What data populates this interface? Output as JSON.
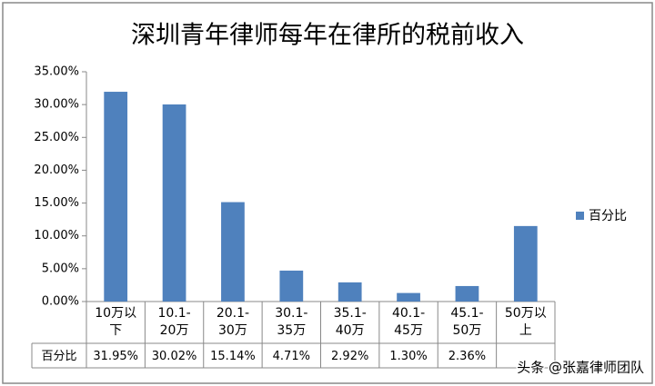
{
  "chart_data": {
    "type": "bar",
    "title": "深圳青年律师每年在律所的税前收入",
    "categories": [
      "10万以下",
      "10.1-20万",
      "20.1-30万",
      "30.1-35万",
      "35.1-40万",
      "40.1-45万",
      "45.1-50万",
      "50万以上"
    ],
    "series": [
      {
        "name": "百分比",
        "color": "#4f81bd",
        "values": [
          31.95,
          30.02,
          15.14,
          4.71,
          2.92,
          1.3,
          2.36,
          11.5
        ],
        "value_labels": [
          "31.95%",
          "30.02%",
          "15.14%",
          "4.71%",
          "2.92%",
          "1.30%",
          "2.36%",
          null
        ]
      }
    ],
    "ylim": [
      0,
      35
    ],
    "yticks": [
      {
        "value": 0,
        "label": "0.00%"
      },
      {
        "value": 5,
        "label": "5.00%"
      },
      {
        "value": 10,
        "label": "10.00%"
      },
      {
        "value": 15,
        "label": "15.00%"
      },
      {
        "value": 20,
        "label": "20.00%"
      },
      {
        "value": 25,
        "label": "25.00%"
      },
      {
        "value": 30,
        "label": "30.00%"
      },
      {
        "value": 35,
        "label": "35.00%"
      }
    ],
    "grid": false,
    "legend": "right"
  },
  "watermark": "头条 @张嘉律师团队"
}
